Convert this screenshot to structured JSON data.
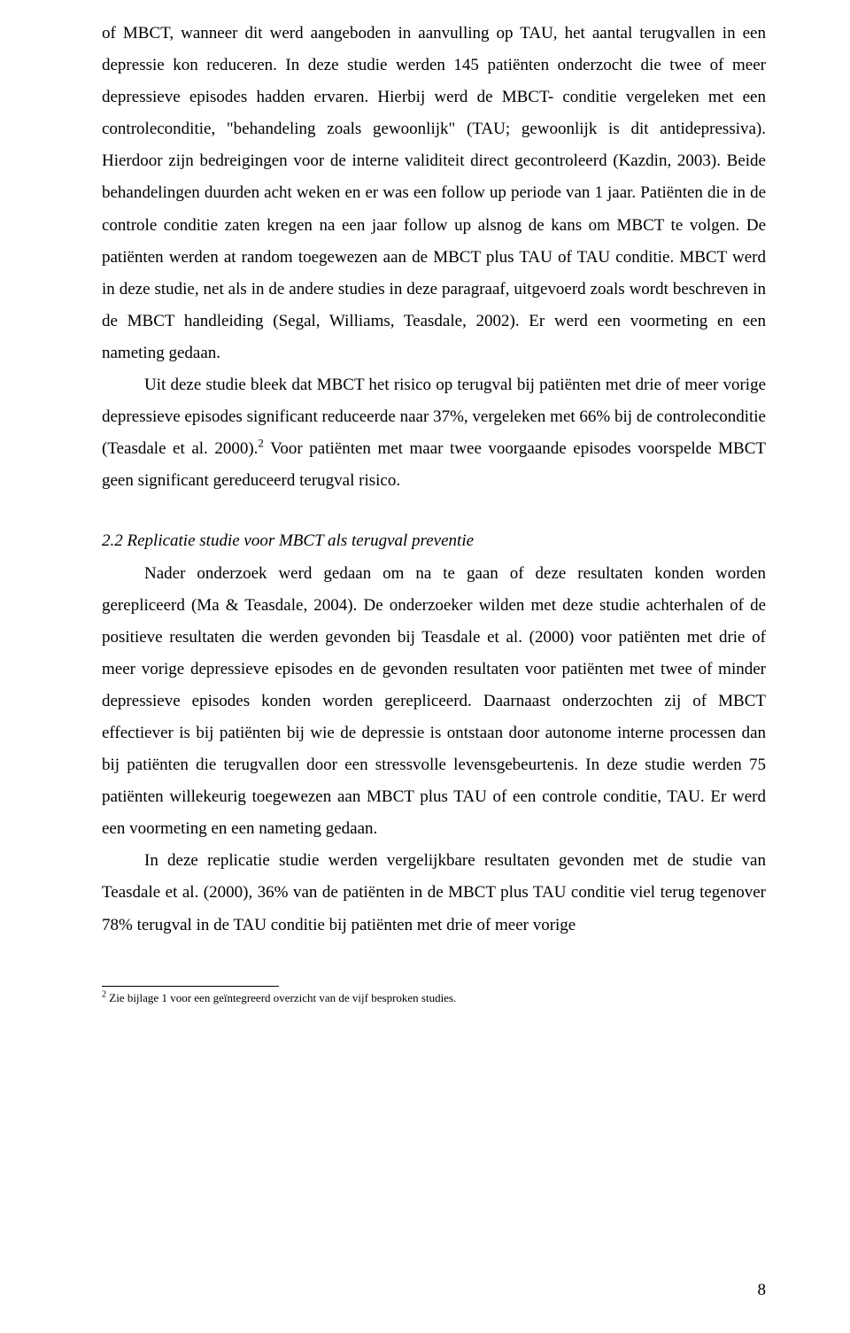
{
  "paragraphs": {
    "p1": "of MBCT, wanneer dit werd aangeboden in aanvulling op TAU, het aantal terugvallen in een depressie kon reduceren. In deze studie werden 145 patiënten onderzocht die twee of meer depressieve episodes hadden ervaren. Hierbij werd de MBCT- conditie vergeleken met een controleconditie, \"behandeling zoals gewoonlijk\" (TAU; gewoonlijk is dit antidepressiva). Hierdoor zijn bedreigingen voor de interne validiteit direct gecontroleerd (Kazdin, 2003). Beide behandelingen duurden acht weken en er was een follow up periode van 1 jaar. Patiënten die in de controle conditie zaten kregen na een jaar follow up alsnog de kans om MBCT te volgen. De patiënten werden at random toegewezen aan de MBCT plus TAU of TAU conditie. MBCT werd in deze studie, net als in de andere studies in deze paragraaf, uitgevoerd zoals wordt beschreven in de MBCT handleiding (Segal, Williams, Teasdale, 2002). Er werd een voormeting en een nameting gedaan.",
    "p2a": "Uit deze studie bleek dat MBCT het risico op terugval bij patiënten met drie of meer vorige depressieve episodes significant reduceerde naar 37%, vergeleken met 66% bij de controleconditie (Teasdale et al. 2000).",
    "p2b": " Voor patiënten met maar twee voorgaande episodes voorspelde MBCT geen significant gereduceerd terugval risico.",
    "superscript2": "2",
    "heading": "2.2 Replicatie studie voor MBCT als terugval preventie",
    "p3": "Nader onderzoek werd gedaan om na te gaan of deze resultaten konden worden gerepliceerd (Ma & Teasdale, 2004). De onderzoeker wilden met deze studie achterhalen of de positieve resultaten die werden gevonden bij Teasdale et al. (2000) voor patiënten met drie of meer vorige depressieve episodes en de gevonden resultaten voor patiënten met twee of minder depressieve episodes konden worden gerepliceerd. Daarnaast onderzochten zij of MBCT effectiever is bij patiënten bij wie de depressie is ontstaan door autonome interne processen dan bij patiënten die terugvallen door een stressvolle levensgebeurtenis. In deze studie werden 75 patiënten willekeurig toegewezen aan MBCT plus TAU of een controle conditie, TAU. Er werd een voormeting en een nameting gedaan.",
    "p4": "In deze replicatie studie werden vergelijkbare resultaten gevonden met de studie van Teasdale et al. (2000), 36% van de patiënten in de MBCT plus TAU conditie viel terug tegenover 78% terugval in de TAU conditie bij patiënten met drie of meer vorige"
  },
  "footnote": {
    "marker": "2",
    "text": " Zie bijlage 1 voor een geïntegreerd overzicht van de vijf besproken studies."
  },
  "page_number": "8"
}
